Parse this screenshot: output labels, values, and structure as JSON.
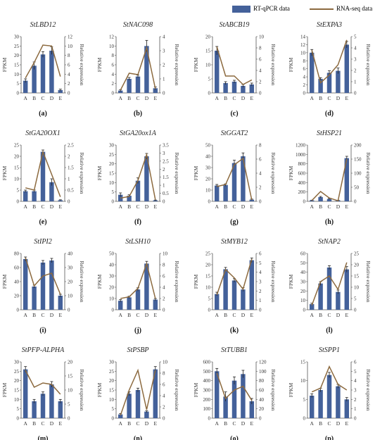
{
  "legend": {
    "bar_label": "RT-qPCR data",
    "line_label": "RNA-seq data",
    "bar_color": "#44619a",
    "line_color": "#8c6a3f",
    "error_color": "#222222"
  },
  "chart_data": [
    {
      "type": "bar",
      "title": "StLBD12",
      "panel": "(a)",
      "categories": [
        "A",
        "B",
        "C",
        "D",
        "E"
      ],
      "ylabel": "FPKM",
      "y2label": "Relative expression",
      "ylim": [
        0,
        30
      ],
      "yticks": [
        0,
        5,
        10,
        15,
        20,
        25,
        30
      ],
      "y2lim": [
        0,
        12
      ],
      "y2ticks": [
        0,
        2,
        4,
        6,
        8,
        10,
        12
      ],
      "series": [
        {
          "values": [
            6.5,
            14.5,
            20.5,
            22.5,
            1.5
          ],
          "errors": [
            1,
            2,
            1.5,
            2,
            0.5
          ]
        },
        {
          "axis": "right",
          "values": [
            3.2,
            6.5,
            10.2,
            10,
            3.5
          ]
        }
      ]
    },
    {
      "type": "bar",
      "title": "StNAC098",
      "panel": "(b)",
      "categories": [
        "A",
        "B",
        "C",
        "D",
        "E"
      ],
      "ylabel": "FPKM",
      "y2label": "Relative expression",
      "ylim": [
        0,
        12
      ],
      "yticks": [
        0,
        2,
        4,
        6,
        8,
        10,
        12
      ],
      "y2lim": [
        0,
        4
      ],
      "y2ticks": [
        0,
        1,
        2,
        3,
        4
      ],
      "series": [
        {
          "values": [
            0.5,
            3,
            3.5,
            10,
            1
          ],
          "errors": [
            0.2,
            0.3,
            0.3,
            1.2,
            0.3
          ]
        },
        {
          "axis": "right",
          "values": [
            0.2,
            1.4,
            1.3,
            3.2,
            0.3
          ]
        }
      ]
    },
    {
      "type": "bar",
      "title": "StABCB19",
      "panel": "(c)",
      "categories": [
        "A",
        "B",
        "C",
        "D",
        "E"
      ],
      "ylabel": "FPKM",
      "y2label": "Relative expression",
      "ylim": [
        0,
        20
      ],
      "yticks": [
        0,
        5,
        10,
        15,
        20
      ],
      "y2lim": [
        0,
        10
      ],
      "y2ticks": [
        0,
        2,
        4,
        6,
        8,
        10
      ],
      "series": [
        {
          "values": [
            15,
            3.5,
            4,
            2.5,
            3
          ],
          "errors": [
            1.5,
            0.5,
            0.5,
            0.5,
            0.5
          ]
        },
        {
          "axis": "right",
          "values": [
            8.2,
            3,
            3,
            1.5,
            2.3
          ]
        }
      ]
    },
    {
      "type": "bar",
      "title": "StEXPA3",
      "panel": "(d)",
      "categories": [
        "A",
        "B",
        "C",
        "D",
        "E"
      ],
      "ylabel": "FPKM",
      "y2label": "Relative expression",
      "ylim": [
        0,
        14
      ],
      "yticks": [
        0,
        2,
        4,
        6,
        8,
        10,
        12,
        14
      ],
      "y2lim": [
        0,
        5
      ],
      "y2ticks": [
        0,
        1,
        2,
        3,
        4,
        5
      ],
      "series": [
        {
          "values": [
            10,
            3.5,
            5,
            5.5,
            12
          ],
          "errors": [
            0.8,
            0.3,
            0.5,
            0.7,
            0.8
          ]
        },
        {
          "axis": "right",
          "values": [
            3.8,
            0.9,
            1.6,
            2.5,
            4.7
          ]
        }
      ]
    },
    {
      "type": "bar",
      "title": "StGA20OX1",
      "panel": "(e)",
      "categories": [
        "A",
        "B",
        "C",
        "D",
        "E"
      ],
      "ylabel": "FPKM",
      "y2label": "Relative expression",
      "ylim": [
        0,
        25
      ],
      "yticks": [
        0,
        5,
        10,
        15,
        20,
        25
      ],
      "y2lim": [
        0,
        2.5
      ],
      "y2ticks": [
        0,
        0.5,
        1,
        1.5,
        2,
        2.5
      ],
      "series": [
        {
          "values": [
            4.5,
            4.5,
            22,
            8.5,
            0.5
          ],
          "errors": [
            0.5,
            0.5,
            0.8,
            1.5,
            0.2
          ]
        },
        {
          "axis": "right",
          "values": [
            0.6,
            0.5,
            2.2,
            1.2,
            0.2
          ]
        }
      ]
    },
    {
      "type": "bar",
      "title": "StGA20ox1A",
      "panel": "(f)",
      "categories": [
        "A",
        "B",
        "C",
        "D",
        "E"
      ],
      "ylabel": "FPKM",
      "y2label": "Relative expression",
      "ylim": [
        0,
        30
      ],
      "yticks": [
        0,
        5,
        10,
        15,
        20,
        25,
        30
      ],
      "y2lim": [
        0,
        3.5
      ],
      "y2ticks": [
        0,
        0.5,
        1,
        1.5,
        2,
        2.5,
        3,
        3.5
      ],
      "series": [
        {
          "values": [
            3.5,
            3,
            11,
            24,
            0.5
          ],
          "errors": [
            1,
            0.5,
            1.5,
            1.5,
            0.2
          ]
        },
        {
          "axis": "right",
          "values": [
            0.2,
            0.3,
            1.3,
            2.9,
            0.1
          ]
        }
      ]
    },
    {
      "type": "bar",
      "title": "StGGAT2",
      "panel": "(g)",
      "categories": [
        "A",
        "B",
        "C",
        "D",
        "E"
      ],
      "ylabel": "FPKM",
      "y2label": "Relative expression",
      "ylim": [
        0,
        50
      ],
      "yticks": [
        0,
        10,
        20,
        30,
        40,
        50
      ],
      "y2lim": [
        0,
        8
      ],
      "y2ticks": [
        0,
        2,
        4,
        6,
        8
      ],
      "series": [
        {
          "values": [
            14,
            14.5,
            34,
            40,
            1.5
          ],
          "errors": [
            1,
            1,
            2.5,
            3,
            0.5
          ]
        },
        {
          "axis": "right",
          "values": [
            2.1,
            2.4,
            5.2,
            6.1,
            0.2
          ]
        }
      ]
    },
    {
      "type": "bar",
      "title": "StHSP21",
      "panel": "(h)",
      "categories": [
        "A",
        "B",
        "C",
        "D",
        "E"
      ],
      "ylabel": "FPKM",
      "y2label": "Relative expression",
      "ylim": [
        0,
        1200
      ],
      "yticks": [
        0,
        200,
        400,
        600,
        800,
        1000,
        1200
      ],
      "y2lim": [
        0,
        200
      ],
      "y2ticks": [
        0,
        50,
        100,
        150,
        200
      ],
      "series": [
        {
          "values": [
            20,
            90,
            50,
            20,
            920
          ],
          "errors": [
            5,
            15,
            10,
            5,
            40
          ]
        },
        {
          "axis": "right",
          "values": [
            3,
            35,
            12,
            2,
            150
          ]
        }
      ]
    },
    {
      "type": "bar",
      "title": "StIPI2",
      "panel": "(i)",
      "categories": [
        "A",
        "B",
        "C",
        "D",
        "E"
      ],
      "ylabel": "FPKM",
      "y2label": "Relative expression",
      "ylim": [
        0,
        80
      ],
      "yticks": [
        0,
        20,
        40,
        60,
        80
      ],
      "y2lim": [
        0,
        40
      ],
      "y2ticks": [
        0,
        10,
        20,
        30,
        40
      ],
      "series": [
        {
          "values": [
            72,
            33,
            67,
            70,
            20
          ],
          "errors": [
            3,
            2,
            3,
            3,
            2
          ]
        },
        {
          "axis": "right",
          "values": [
            37,
            17,
            24,
            26,
            11
          ]
        }
      ]
    },
    {
      "type": "bar",
      "title": "StLSH10",
      "panel": "(j)",
      "categories": [
        "A",
        "B",
        "C",
        "D",
        "E"
      ],
      "ylabel": "FPKM",
      "y2label": "Relative expression",
      "ylim": [
        0,
        50
      ],
      "yticks": [
        0,
        10,
        20,
        30,
        40,
        50
      ],
      "y2lim": [
        0,
        10
      ],
      "y2ticks": [
        0,
        2,
        4,
        6,
        8,
        10
      ],
      "series": [
        {
          "values": [
            8,
            11,
            18,
            41,
            9
          ],
          "errors": [
            1,
            1,
            1.5,
            2,
            1
          ]
        },
        {
          "axis": "right",
          "values": [
            2,
            2.3,
            3.8,
            8.2,
            2
          ]
        }
      ]
    },
    {
      "type": "bar",
      "title": "StMYB12",
      "panel": "(k)",
      "categories": [
        "A",
        "B",
        "C",
        "D",
        "E"
      ],
      "ylabel": "FPKM",
      "y2label": "Relative expression",
      "ylim": [
        0,
        25
      ],
      "yticks": [
        0,
        5,
        10,
        15,
        20,
        25
      ],
      "y2lim": [
        0,
        6
      ],
      "y2ticks": [
        0,
        1,
        2,
        3,
        4,
        5,
        6
      ],
      "series": [
        {
          "values": [
            7,
            18,
            13,
            9,
            22
          ],
          "errors": [
            0.8,
            0.8,
            0.8,
            0.8,
            1
          ]
        },
        {
          "axis": "right",
          "values": [
            1.6,
            4.3,
            3.4,
            2.2,
            5.4
          ]
        }
      ]
    },
    {
      "type": "bar",
      "title": "StNAP2",
      "panel": "(l)",
      "categories": [
        "A",
        "B",
        "C",
        "D",
        "E"
      ],
      "ylabel": "FPKM",
      "y2label": "Relative expression",
      "ylim": [
        0,
        60
      ],
      "yticks": [
        0,
        10,
        20,
        30,
        40,
        50,
        60
      ],
      "y2lim": [
        0,
        25
      ],
      "y2ticks": [
        0,
        5,
        10,
        15,
        20,
        25
      ],
      "series": [
        {
          "values": [
            6,
            28,
            45,
            19,
            43
          ],
          "errors": [
            1,
            2,
            2,
            2,
            3
          ]
        },
        {
          "axis": "right",
          "values": [
            2,
            12.5,
            15,
            9,
            21
          ]
        }
      ]
    },
    {
      "type": "bar",
      "title": "StPFP-ALPHA",
      "panel": "(m)",
      "categories": [
        "A",
        "B",
        "C",
        "D",
        "E"
      ],
      "ylabel": "FPKM",
      "y2label": "Relative expression",
      "ylim": [
        0,
        30
      ],
      "yticks": [
        0,
        5,
        10,
        15,
        20,
        25,
        30
      ],
      "y2lim": [
        0,
        20
      ],
      "y2ticks": [
        0,
        5,
        10,
        15,
        20
      ],
      "series": [
        {
          "values": [
            26,
            9,
            13,
            18,
            9
          ],
          "errors": [
            1.5,
            1,
            1,
            1.5,
            1
          ]
        },
        {
          "axis": "right",
          "values": [
            17,
            11,
            12.5,
            12,
            8.5
          ]
        }
      ]
    },
    {
      "type": "bar",
      "title": "StPSBP",
      "panel": "(n)",
      "categories": [
        "A",
        "B",
        "C",
        "D",
        "E"
      ],
      "ylabel": "FPKM",
      "y2label": "Relative expression",
      "ylim": [
        0,
        30
      ],
      "yticks": [
        0,
        5,
        10,
        15,
        20,
        25,
        30
      ],
      "y2lim": [
        0,
        10
      ],
      "y2ticks": [
        0,
        2,
        4,
        6,
        8,
        10
      ],
      "series": [
        {
          "values": [
            2,
            13,
            15,
            3.5,
            26
          ],
          "errors": [
            0.5,
            1,
            1,
            0.5,
            1.5
          ]
        },
        {
          "axis": "right",
          "values": [
            0.5,
            5,
            8.5,
            1.5,
            8.5
          ]
        }
      ]
    },
    {
      "type": "bar",
      "title": "StTUBB1",
      "panel": "(o)",
      "categories": [
        "A",
        "B",
        "C",
        "D",
        "E"
      ],
      "ylabel": "FPKM",
      "y2label": "Relative expression",
      "ylim": [
        0,
        600
      ],
      "yticks": [
        0,
        100,
        200,
        300,
        400,
        500,
        600
      ],
      "y2lim": [
        0,
        120
      ],
      "y2ticks": [
        0,
        20,
        40,
        60,
        80,
        100,
        120
      ],
      "series": [
        {
          "values": [
            500,
            230,
            400,
            470,
            180
          ],
          "errors": [
            30,
            50,
            40,
            40,
            30
          ]
        },
        {
          "axis": "right",
          "values": [
            96,
            42,
            60,
            68,
            38
          ]
        }
      ]
    },
    {
      "type": "bar",
      "title": "StSPP1",
      "panel": "(p)",
      "categories": [
        "A",
        "B",
        "C",
        "D",
        "E"
      ],
      "ylabel": "FPKM",
      "y2label": "Relative expression",
      "ylim": [
        0,
        15
      ],
      "yticks": [
        0,
        5,
        10,
        15
      ],
      "y2lim": [
        0,
        6
      ],
      "y2ticks": [
        0,
        1,
        2,
        3,
        4,
        5,
        6
      ],
      "series": [
        {
          "values": [
            6,
            7.5,
            11.5,
            8.5,
            5
          ],
          "errors": [
            0.5,
            0.5,
            0.7,
            0.5,
            0.5
          ]
        },
        {
          "axis": "right",
          "values": [
            2.8,
            3.2,
            5.5,
            3.6,
            3
          ]
        }
      ]
    }
  ]
}
